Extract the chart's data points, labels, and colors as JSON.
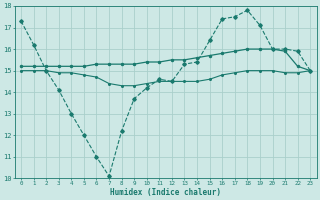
{
  "xlabel": "Humidex (Indice chaleur)",
  "xlim": [
    -0.5,
    23.5
  ],
  "ylim": [
    10,
    18
  ],
  "yticks": [
    10,
    11,
    12,
    13,
    14,
    15,
    16,
    17,
    18
  ],
  "xticks": [
    0,
    1,
    2,
    3,
    4,
    5,
    6,
    7,
    8,
    9,
    10,
    11,
    12,
    13,
    14,
    15,
    16,
    17,
    18,
    19,
    20,
    21,
    22,
    23
  ],
  "bg_color": "#cde8e5",
  "grid_color": "#aacfcb",
  "line_color": "#1a7a6e",
  "line1_x": [
    0,
    1,
    2,
    3,
    4,
    5,
    6,
    7,
    8,
    9,
    10,
    11,
    12,
    13,
    14,
    15,
    16,
    17,
    18,
    19,
    20,
    21,
    22,
    23
  ],
  "line1_y": [
    17.3,
    16.2,
    15.0,
    14.1,
    13.0,
    12.0,
    11.0,
    10.1,
    12.2,
    13.7,
    14.2,
    14.6,
    14.5,
    15.3,
    15.4,
    16.4,
    17.4,
    17.5,
    17.8,
    17.1,
    16.0,
    16.0,
    15.9,
    15.0
  ],
  "line2_x": [
    0,
    1,
    2,
    3,
    4,
    5,
    6,
    7,
    8,
    9,
    10,
    11,
    12,
    13,
    14,
    15,
    16,
    17,
    18,
    19,
    20,
    21,
    22,
    23
  ],
  "line2_y": [
    15.2,
    15.2,
    15.2,
    15.2,
    15.2,
    15.2,
    15.3,
    15.3,
    15.3,
    15.3,
    15.4,
    15.4,
    15.5,
    15.5,
    15.6,
    15.7,
    15.8,
    15.9,
    16.0,
    16.0,
    16.0,
    15.9,
    15.2,
    15.0
  ],
  "line3_x": [
    0,
    1,
    2,
    3,
    4,
    5,
    6,
    7,
    8,
    9,
    10,
    11,
    12,
    13,
    14,
    15,
    16,
    17,
    18,
    19,
    20,
    21,
    22,
    23
  ],
  "line3_y": [
    15.0,
    15.0,
    15.0,
    14.9,
    14.9,
    14.8,
    14.7,
    14.4,
    14.3,
    14.3,
    14.4,
    14.5,
    14.5,
    14.5,
    14.5,
    14.6,
    14.8,
    14.9,
    15.0,
    15.0,
    15.0,
    14.9,
    14.9,
    15.0
  ]
}
